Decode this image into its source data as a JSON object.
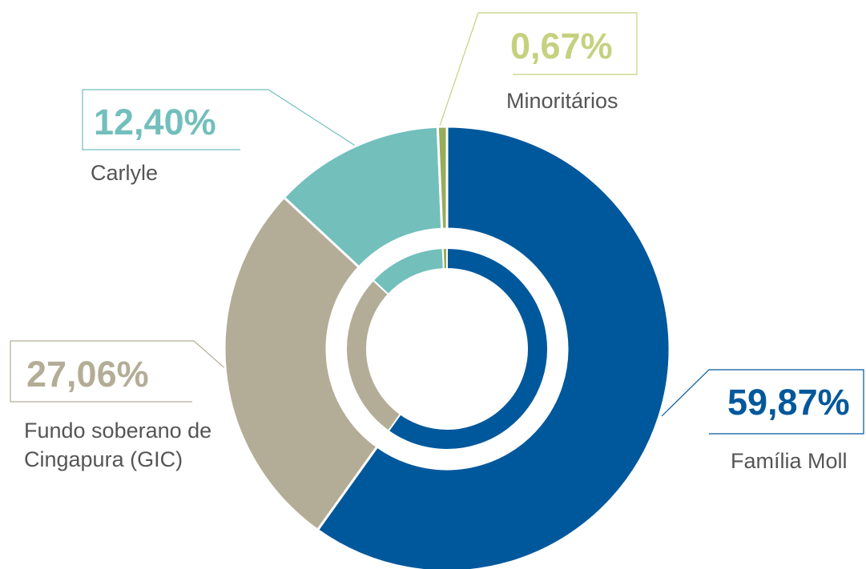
{
  "chart_data": {
    "type": "donut",
    "categories": [
      "Família Moll",
      "Fundo soberano de Cingapura (GIC)",
      "Carlyle",
      "Minoritários"
    ],
    "values": [
      59.87,
      27.06,
      12.4,
      0.67
    ],
    "value_labels": [
      "59,87%",
      "27,06%",
      "12,40%",
      "0,67%"
    ],
    "colors": [
      "#00589c",
      "#b3ad98",
      "#72bfbc",
      "#98ac5a"
    ]
  }
}
